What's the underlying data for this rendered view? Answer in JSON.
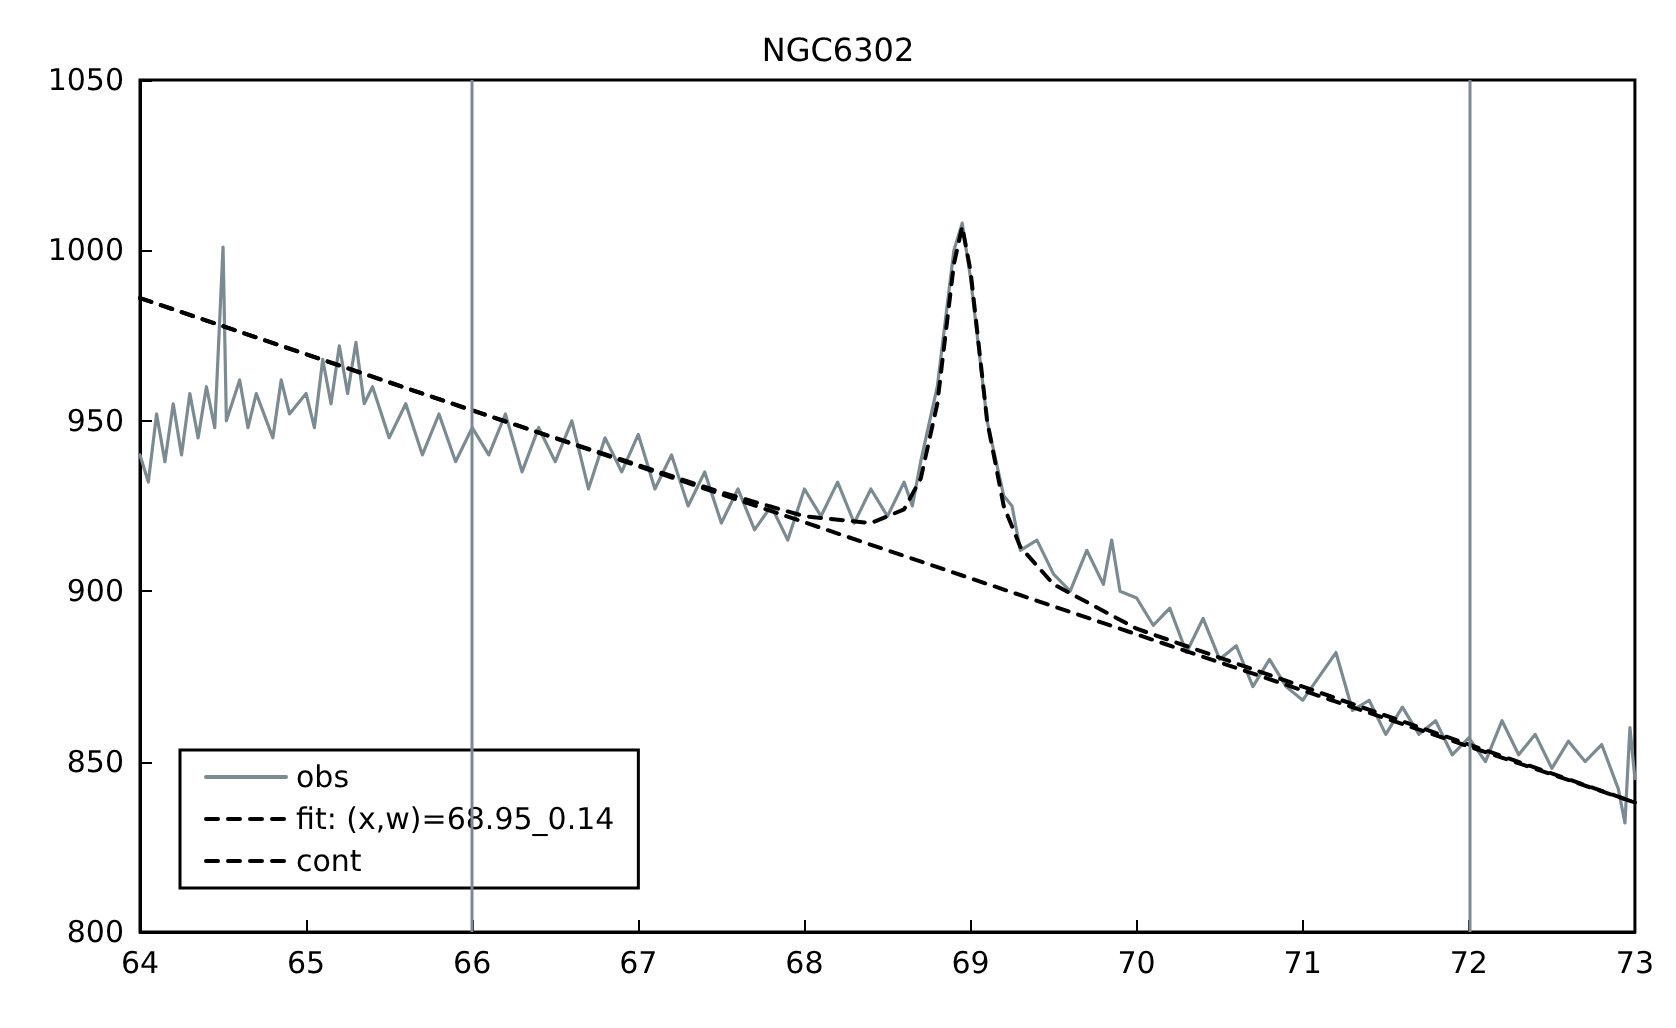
{
  "chart_data": {
    "type": "line",
    "title": "NGC6302",
    "xlim": [
      64,
      73
    ],
    "ylim": [
      800,
      1050
    ],
    "xticks": [
      64,
      65,
      66,
      67,
      68,
      69,
      70,
      71,
      72,
      73
    ],
    "yticks": [
      800,
      850,
      900,
      950,
      1000,
      1050
    ],
    "grid": false,
    "legend": "bottom left",
    "marker": "none",
    "ref_lines": [
      {
        "axis": "x",
        "value": 66,
        "color": "#7c8b91"
      },
      {
        "axis": "x",
        "value": 72,
        "color": "#7c8b91"
      }
    ],
    "series": [
      {
        "name": "obs",
        "color": "#7c8b91",
        "line_style": "solid",
        "x": [
          64.0,
          64.05,
          64.1,
          64.15,
          64.2,
          64.25,
          64.3,
          64.35,
          64.4,
          64.45,
          64.5,
          64.52,
          64.6,
          64.65,
          64.7,
          64.8,
          64.85,
          64.9,
          65.0,
          65.05,
          65.1,
          65.15,
          65.2,
          65.25,
          65.3,
          65.35,
          65.4,
          65.5,
          65.6,
          65.7,
          65.8,
          65.9,
          66.0,
          66.1,
          66.2,
          66.3,
          66.4,
          66.5,
          66.6,
          66.7,
          66.8,
          66.9,
          67.0,
          67.1,
          67.2,
          67.3,
          67.4,
          67.5,
          67.6,
          67.7,
          67.8,
          67.9,
          68.0,
          68.1,
          68.2,
          68.3,
          68.4,
          68.5,
          68.6,
          68.65,
          68.7,
          68.8,
          68.9,
          68.95,
          69.0,
          69.1,
          69.2,
          69.25,
          69.3,
          69.4,
          69.5,
          69.6,
          69.7,
          69.8,
          69.85,
          69.9,
          70.0,
          70.1,
          70.2,
          70.3,
          70.4,
          70.5,
          70.6,
          70.7,
          70.8,
          70.9,
          71.0,
          71.1,
          71.2,
          71.3,
          71.4,
          71.5,
          71.6,
          71.7,
          71.8,
          71.9,
          72.0,
          72.1,
          72.2,
          72.3,
          72.4,
          72.5,
          72.6,
          72.7,
          72.8,
          72.9,
          72.94,
          72.97,
          73.0
        ],
        "values": [
          940,
          932,
          952,
          938,
          955,
          940,
          958,
          945,
          960,
          948,
          1001,
          950,
          962,
          948,
          958,
          945,
          962,
          952,
          958,
          948,
          968,
          955,
          972,
          958,
          973,
          955,
          960,
          945,
          955,
          940,
          952,
          938,
          948,
          940,
          952,
          935,
          948,
          938,
          950,
          930,
          945,
          935,
          946,
          930,
          940,
          925,
          935,
          920,
          930,
          918,
          925,
          915,
          930,
          922,
          932,
          920,
          930,
          922,
          932,
          925,
          938,
          960,
          1000,
          1008,
          992,
          950,
          928,
          925,
          912,
          915,
          905,
          900,
          912,
          902,
          915,
          900,
          898,
          890,
          895,
          882,
          892,
          880,
          884,
          872,
          880,
          872,
          868,
          875,
          882,
          865,
          868,
          858,
          866,
          858,
          862,
          852,
          857,
          850,
          862,
          852,
          858,
          848,
          856,
          850,
          855,
          842,
          832,
          860,
          845
        ]
      },
      {
        "name": "fit: (x,w)=68.95_0.14",
        "color": "#000000",
        "line_style": "dashed",
        "x": [
          64,
          66,
          67.5,
          68,
          68.4,
          68.6,
          68.7,
          68.8,
          68.9,
          68.95,
          69.0,
          69.1,
          69.2,
          69.3,
          69.5,
          70,
          71,
          73
        ],
        "values": [
          986,
          953,
          929,
          922,
          920,
          924,
          933,
          955,
          996,
          1007,
          994,
          950,
          925,
          913,
          902,
          889,
          872,
          838
        ]
      },
      {
        "name": "cont",
        "color": "#000000",
        "line_style": "dashed",
        "x": [
          64,
          73
        ],
        "values": [
          986,
          838
        ]
      }
    ]
  }
}
